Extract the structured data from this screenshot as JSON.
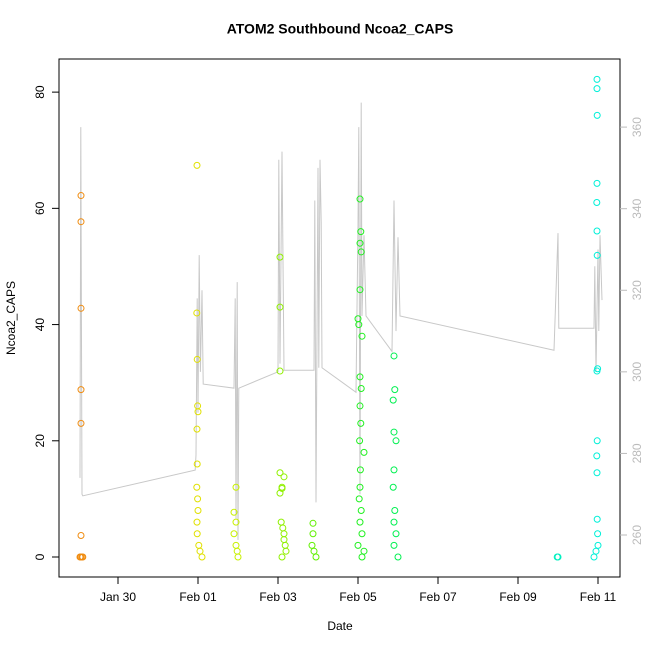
{
  "chart_data": {
    "type": "scatter",
    "title": "ATOM2 Southbound Ncoa2_CAPS",
    "x_label": "Date",
    "y_label": "Ncoa2_CAPS",
    "xlim": [
      -1.475,
      12.55
    ],
    "ylim": [
      -3.44,
      85.7
    ],
    "y2lim": [
      249.7,
      376.7
    ],
    "xticks": [
      {
        "value": 0,
        "label": "Jan 30"
      },
      {
        "value": 2,
        "label": "Feb 01"
      },
      {
        "value": 4,
        "label": "Feb 03"
      },
      {
        "value": 6,
        "label": "Feb 05"
      },
      {
        "value": 8,
        "label": "Feb 07"
      },
      {
        "value": 10,
        "label": "Feb 09"
      },
      {
        "value": 12,
        "label": "Feb 11"
      }
    ],
    "yticks": [
      0,
      20,
      40,
      60,
      80
    ],
    "y2ticks": [
      260,
      280,
      300,
      320,
      340,
      360
    ],
    "series": [
      {
        "color": "#f08c10",
        "x": [
          -0.95,
          -0.93,
          -0.9,
          -0.88,
          -0.925,
          -0.925,
          -0.925,
          -0.925,
          -0.925,
          -0.925
        ],
        "values": [
          0,
          0,
          0,
          0,
          3.7,
          23,
          28.8,
          42.8,
          57.7,
          62.2
        ]
      },
      {
        "color": "#e0e000",
        "x": [
          1.975,
          1.97,
          1.98,
          1.99,
          2.0,
          1.975,
          1.98,
          1.97,
          1.99,
          2.0,
          1.975,
          1.98,
          2.02,
          2.05,
          2.1
        ],
        "values": [
          67.4,
          42,
          34,
          26,
          25,
          22,
          16,
          12,
          10,
          8,
          6,
          4,
          2,
          1,
          0
        ]
      },
      {
        "color": "#c8f000",
        "x": [
          2.95,
          2.9,
          2.95,
          2.9,
          2.95,
          2.98,
          3.0
        ],
        "values": [
          12,
          7.7,
          6,
          4,
          2,
          1,
          0
        ]
      },
      {
        "color": "#90f000",
        "x": [
          4.05,
          4.05,
          4.05,
          4.05,
          4.1,
          4.15,
          4.05,
          4.1,
          4.08,
          4.12,
          4.15,
          4.15,
          4.18,
          4.2,
          4.1
        ],
        "values": [
          51.6,
          43,
          32,
          14.5,
          12,
          13.8,
          11,
          11.8,
          6,
          5,
          4,
          3,
          2,
          1,
          0
        ]
      },
      {
        "color": "#60f000",
        "x": [
          4.875,
          4.875,
          4.85,
          4.9,
          4.95
        ],
        "values": [
          5.8,
          4,
          2,
          1,
          0
        ]
      },
      {
        "color": "#20f020",
        "x": [
          6.05,
          6.07,
          6.05,
          6.08,
          6.05,
          6.0,
          6.02,
          6.1,
          6.05,
          6.08,
          6.05,
          6.07,
          6.04,
          6.15,
          6.06,
          6.05,
          6.03,
          6.08,
          6.05,
          6.1,
          6.0,
          6.15,
          6.1
        ],
        "values": [
          61.6,
          56,
          54,
          52.5,
          46,
          41,
          40,
          38,
          31,
          29,
          26,
          23,
          20,
          18,
          15,
          12,
          10,
          8,
          6,
          4,
          2,
          1,
          0
        ]
      },
      {
        "color": "#00f050",
        "x": [
          6.9,
          6.92,
          6.88,
          6.9,
          6.95,
          6.9,
          6.88,
          6.92,
          6.9,
          6.95,
          6.9,
          7.0
        ],
        "values": [
          34.6,
          28.8,
          27,
          21.5,
          20,
          15,
          12,
          8,
          6,
          4,
          2,
          0
        ]
      },
      {
        "color": "#00f0c0",
        "x": [
          11.0,
          10.98
        ],
        "values": [
          0,
          0
        ]
      },
      {
        "color": "#00f0d8",
        "x": [
          11.975,
          11.975,
          11.98,
          11.975,
          11.97,
          11.975,
          11.98,
          11.99,
          11.975,
          11.98,
          11.97,
          11.975,
          11.98,
          11.99,
          12.0,
          11.95,
          11.9
        ],
        "values": [
          82.2,
          80.6,
          76,
          64.3,
          61,
          56.1,
          51.9,
          32.4,
          32,
          20,
          17.4,
          14.5,
          6.5,
          4,
          2,
          1,
          0
        ]
      },
      {
        "type": "line",
        "axis": "y2",
        "color": "#c8c8c8",
        "x": [
          -0.95,
          -0.93,
          -0.9,
          -0.88,
          1.93,
          1.95,
          1.98,
          2.0,
          2.03,
          2.06,
          2.1,
          2.13,
          2.9,
          2.93,
          2.95,
          2.98,
          3.0,
          3.02,
          4.0,
          4.02,
          4.05,
          4.1,
          4.15,
          4.9,
          4.92,
          4.95,
          5.0,
          5.02,
          5.05,
          5.08,
          5.1,
          5.95,
          6.0,
          6.02,
          6.05,
          6.08,
          6.1,
          6.15,
          6.2,
          6.85,
          6.9,
          6.95,
          7.0,
          7.05,
          10.9,
          11.0,
          11.02,
          11.9,
          11.92,
          11.95,
          12.0,
          12.02,
          12.05,
          12.1
        ],
        "values": [
          274,
          360,
          270,
          269.6,
          275.9,
          279.6,
          318,
          290,
          328.6,
          300,
          320,
          297,
          296,
          318,
          264,
          322,
          258.8,
          296,
          300,
          352,
          302,
          354,
          300.4,
          300.4,
          342,
          268,
          350,
          301,
          352,
          336.7,
          301,
          295,
          336,
          360,
          270,
          366,
          313.7,
          333.5,
          313.7,
          305,
          342,
          310,
          333,
          313.7,
          305.3,
          334,
          310.7,
          310.7,
          325.9,
          300,
          330,
          310,
          333.5,
          317.6
        ]
      }
    ]
  }
}
